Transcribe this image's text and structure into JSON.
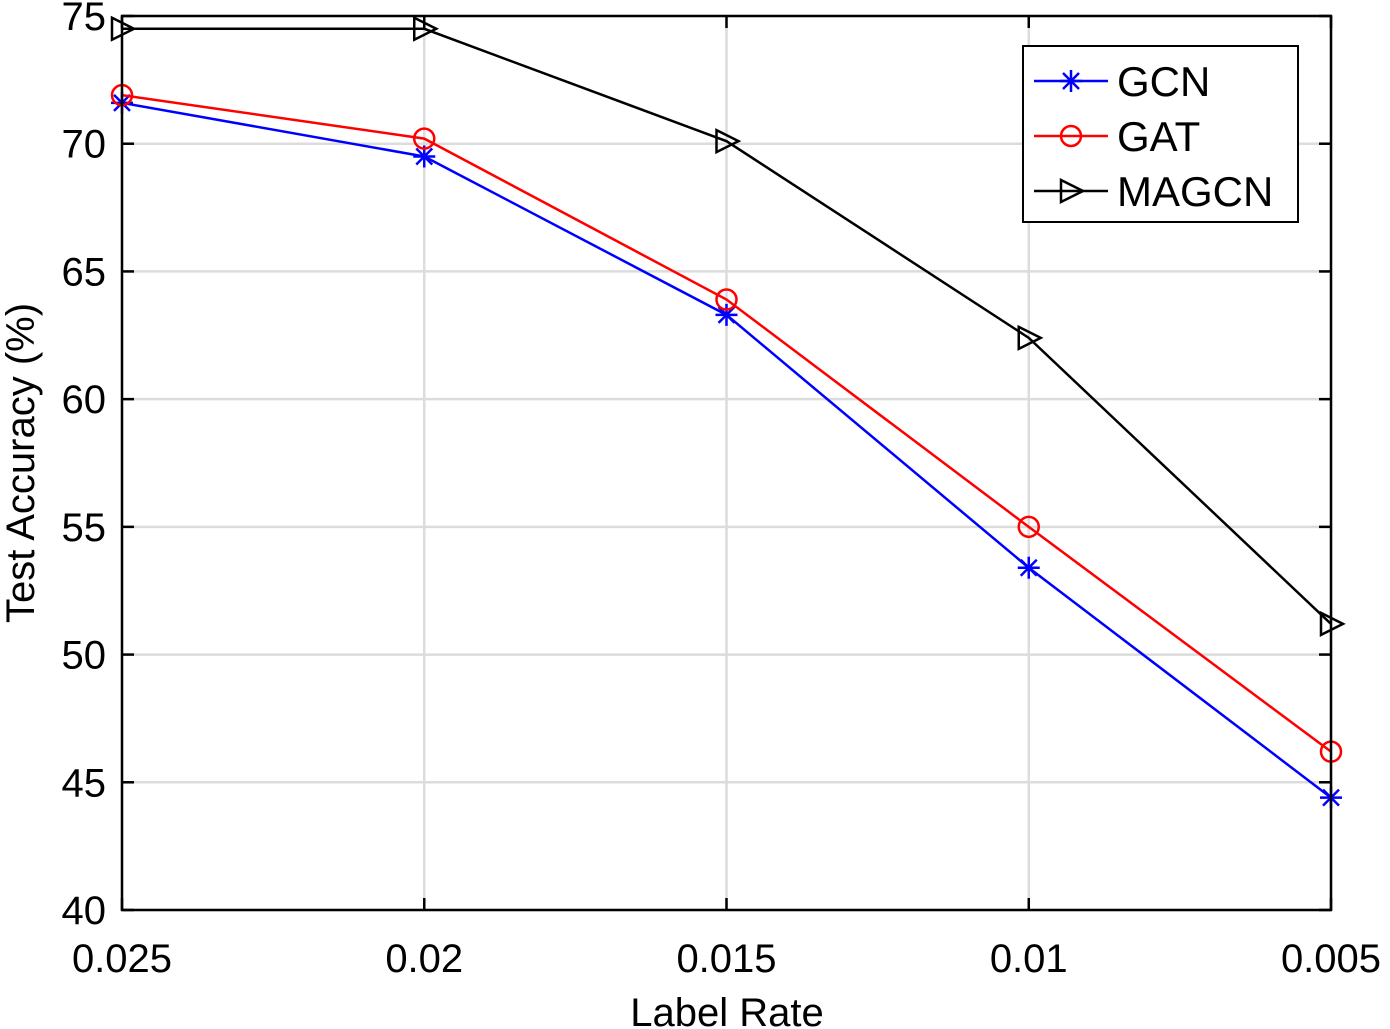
{
  "chart_data": {
    "type": "line",
    "title": "",
    "xlabel": "Label Rate",
    "ylabel": "Test Accuracy (%)",
    "x": [
      0.025,
      0.02,
      0.015,
      0.01,
      0.005
    ],
    "x_tick_labels": [
      "0.025",
      "0.02",
      "0.015",
      "0.01",
      "0.005"
    ],
    "x_reversed": true,
    "ylim": [
      40,
      75
    ],
    "y_ticks": [
      40,
      45,
      50,
      55,
      60,
      65,
      70,
      75
    ],
    "y_tick_labels": [
      "40",
      "45",
      "50",
      "55",
      "60",
      "65",
      "70",
      "75"
    ],
    "grid": true,
    "legend_position": "top-right",
    "series": [
      {
        "name": "GCN",
        "color": "#0000ff",
        "marker": "asterisk",
        "values": [
          71.6,
          69.5,
          63.3,
          53.4,
          44.4
        ]
      },
      {
        "name": "GAT",
        "color": "#ff0000",
        "marker": "circle",
        "values": [
          71.9,
          70.2,
          63.9,
          55.0,
          46.2
        ]
      },
      {
        "name": "MAGCN",
        "color": "#000000",
        "marker": "triangle-right",
        "values": [
          74.5,
          74.5,
          70.1,
          62.4,
          51.2
        ]
      }
    ]
  }
}
